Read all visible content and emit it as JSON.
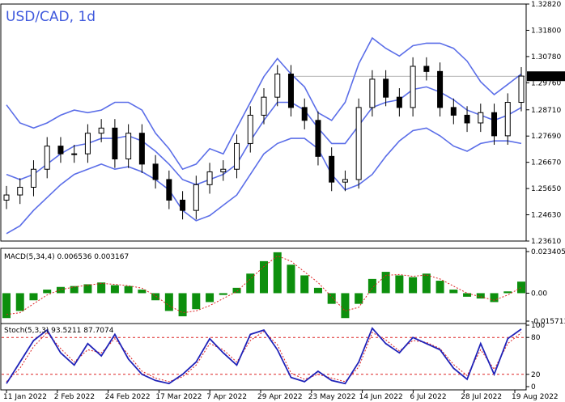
{
  "header": {
    "title": "USD/CAD, 1d"
  },
  "colors": {
    "band": "#5b6ee8",
    "candle": "#000000",
    "macd_bar": "#0d8f0d",
    "macd_signal": "#dd2222",
    "stoch_main": "#1f22b8",
    "stoch_signal": "#dd2222",
    "level_line": "#dd2222",
    "grid": "#d8d8d8"
  },
  "price_axis": {
    "ticks": [
      "1.32820",
      "1.31800",
      "1.30780",
      "1.29760",
      "1.28710",
      "1.27690",
      "1.26670",
      "1.25650",
      "1.24630",
      "1.23610"
    ],
    "current_label": "1.30015"
  },
  "time_axis": {
    "labels": [
      "11 Jan 2022",
      "2 Feb 2022",
      "24 Feb 2022",
      "17 Mar 2022",
      "7 Apr 2022",
      "29 Apr 2022",
      "23 May 2022",
      "14 Jun 2022",
      "6 Jul 2022",
      "28 Jul 2022",
      "19 Aug 2022"
    ]
  },
  "macd_panel": {
    "label": "MACD(5,34,4) 0.006536 0.003167",
    "ticks": [
      "0.023405",
      "0.00",
      "-0.015713"
    ]
  },
  "stoch_panel": {
    "label": "Stoch(5,3,3) 93.5211 87.7074",
    "ticks": [
      "100",
      "80",
      "20",
      "0"
    ]
  },
  "chart_data": {
    "type": "candlestick",
    "title": "USD/CAD, 1d",
    "x_range": [
      "11 Jan 2022",
      "19 Aug 2022"
    ],
    "ylim": [
      1.2361,
      1.3282
    ],
    "last_price": 1.30015,
    "price_series": [
      {
        "date": "11 Jan 2022",
        "close": 1.254
      },
      {
        "date": "17 Jan 2022",
        "close": 1.257
      },
      {
        "date": "21 Jan 2022",
        "close": 1.264
      },
      {
        "date": "25 Jan 2022",
        "close": 1.273
      },
      {
        "date": "2 Feb 2022",
        "close": 1.27
      },
      {
        "date": "10 Feb 2022",
        "close": 1.27
      },
      {
        "date": "18 Feb 2022",
        "close": 1.278
      },
      {
        "date": "24 Feb 2022",
        "close": 1.28
      },
      {
        "date": "2 Mar 2022",
        "close": 1.268
      },
      {
        "date": "7 Mar 2022",
        "close": 1.278
      },
      {
        "date": "11 Mar 2022",
        "close": 1.266
      },
      {
        "date": "17 Mar 2022",
        "close": 1.26
      },
      {
        "date": "24 Mar 2022",
        "close": 1.252
      },
      {
        "date": "31 Mar 2022",
        "close": 1.248
      },
      {
        "date": "7 Apr 2022",
        "close": 1.258
      },
      {
        "date": "13 Apr 2022",
        "close": 1.263
      },
      {
        "date": "20 Apr 2022",
        "close": 1.264
      },
      {
        "date": "25 Apr 2022",
        "close": 1.274
      },
      {
        "date": "29 Apr 2022",
        "close": 1.285
      },
      {
        "date": "5 May 2022",
        "close": 1.292
      },
      {
        "date": "11 May 2022",
        "close": 1.301
      },
      {
        "date": "17 May 2022",
        "close": 1.288
      },
      {
        "date": "23 May 2022",
        "close": 1.283
      },
      {
        "date": "27 May 2022",
        "close": 1.269
      },
      {
        "date": "2 Jun 2022",
        "close": 1.259
      },
      {
        "date": "8 Jun 2022",
        "close": 1.26
      },
      {
        "date": "14 Jun 2022",
        "close": 1.288
      },
      {
        "date": "17 Jun 2022",
        "close": 1.299
      },
      {
        "date": "24 Jun 2022",
        "close": 1.292
      },
      {
        "date": "30 Jun 2022",
        "close": 1.288
      },
      {
        "date": "6 Jul 2022",
        "close": 1.304
      },
      {
        "date": "13 Jul 2022",
        "close": 1.302
      },
      {
        "date": "19 Jul 2022",
        "close": 1.288
      },
      {
        "date": "25 Jul 2022",
        "close": 1.285
      },
      {
        "date": "28 Jul 2022",
        "close": 1.282
      },
      {
        "date": "3 Aug 2022",
        "close": 1.286
      },
      {
        "date": "9 Aug 2022",
        "close": 1.277
      },
      {
        "date": "15 Aug 2022",
        "close": 1.29
      },
      {
        "date": "19 Aug 2022",
        "close": 1.3002
      }
    ],
    "bollinger_bands": {
      "upper": [
        1.289,
        1.282,
        1.28,
        1.282,
        1.285,
        1.287,
        1.286,
        1.287,
        1.29,
        1.29,
        1.287,
        1.278,
        1.272,
        1.264,
        1.266,
        1.272,
        1.27,
        1.28,
        1.29,
        1.3,
        1.307,
        1.301,
        1.296,
        1.286,
        1.283,
        1.29,
        1.305,
        1.315,
        1.311,
        1.308,
        1.312,
        1.313,
        1.313,
        1.311,
        1.306,
        1.298,
        1.293,
        1.297,
        1.301
      ],
      "middle": [
        1.262,
        1.26,
        1.262,
        1.266,
        1.27,
        1.273,
        1.274,
        1.276,
        1.276,
        1.277,
        1.275,
        1.271,
        1.266,
        1.26,
        1.258,
        1.26,
        1.262,
        1.266,
        1.275,
        1.283,
        1.29,
        1.29,
        1.287,
        1.28,
        1.274,
        1.274,
        1.281,
        1.288,
        1.29,
        1.291,
        1.295,
        1.296,
        1.294,
        1.291,
        1.287,
        1.285,
        1.283,
        1.285,
        1.288
      ],
      "lower": [
        1.239,
        1.242,
        1.248,
        1.253,
        1.258,
        1.262,
        1.264,
        1.266,
        1.264,
        1.265,
        1.263,
        1.26,
        1.256,
        1.248,
        1.244,
        1.246,
        1.25,
        1.254,
        1.262,
        1.27,
        1.274,
        1.276,
        1.276,
        1.272,
        1.262,
        1.256,
        1.258,
        1.262,
        1.269,
        1.275,
        1.279,
        1.28,
        1.277,
        1.273,
        1.271,
        1.274,
        1.275,
        1.275,
        1.274
      ]
    },
    "macd": {
      "name": "MACD(5,34,4)",
      "ylim": [
        -0.015713,
        0.023405
      ],
      "histogram": [
        -0.014,
        -0.01,
        -0.004,
        0.002,
        0.0035,
        0.004,
        0.005,
        0.006,
        0.0045,
        0.004,
        0.002,
        -0.004,
        -0.01,
        -0.013,
        -0.009,
        -0.005,
        -0.001,
        0.003,
        0.011,
        0.018,
        0.023,
        0.016,
        0.01,
        0.003,
        -0.006,
        -0.014,
        -0.006,
        0.008,
        0.012,
        0.01,
        0.009,
        0.011,
        0.007,
        0.002,
        -0.002,
        -0.003,
        -0.005,
        0.001,
        0.0065
      ],
      "signal": [
        -0.012,
        -0.011,
        -0.006,
        -0.001,
        0.002,
        0.0035,
        0.0045,
        0.0055,
        0.005,
        0.0042,
        0.0028,
        -0.0015,
        -0.007,
        -0.011,
        -0.01,
        -0.007,
        -0.003,
        0.001,
        0.008,
        0.015,
        0.021,
        0.018,
        0.012,
        0.006,
        -0.002,
        -0.01,
        -0.008,
        0.003,
        0.01,
        0.0105,
        0.0095,
        0.0102,
        0.008,
        0.004,
        0.0,
        -0.002,
        -0.004,
        -0.001,
        0.0032
      ]
    },
    "stochastic": {
      "name": "Stoch(5,3,3)",
      "ylim": [
        0,
        100
      ],
      "levels": [
        20,
        80
      ],
      "main": [
        5,
        40,
        75,
        92,
        55,
        35,
        70,
        50,
        85,
        45,
        20,
        10,
        5,
        20,
        40,
        78,
        55,
        35,
        85,
        92,
        60,
        15,
        8,
        25,
        10,
        5,
        40,
        95,
        70,
        55,
        80,
        70,
        60,
        30,
        12,
        70,
        20,
        78,
        93.5211
      ],
      "signal": [
        8,
        30,
        65,
        88,
        62,
        40,
        60,
        55,
        78,
        52,
        25,
        14,
        8,
        16,
        35,
        70,
        60,
        40,
        75,
        90,
        68,
        22,
        12,
        20,
        14,
        8,
        32,
        88,
        76,
        58,
        75,
        72,
        62,
        36,
        18,
        60,
        28,
        70,
        87.7074
      ]
    }
  }
}
